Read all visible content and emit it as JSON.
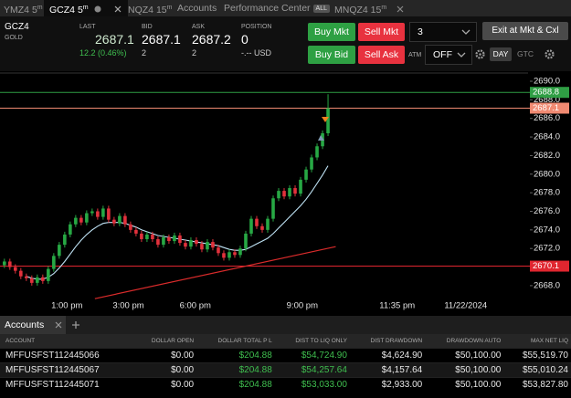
{
  "tabs": [
    {
      "symbol": "YMZ4",
      "interval": "5",
      "unit": "m"
    },
    {
      "symbol": "GCZ4",
      "interval": "5",
      "unit": "m"
    },
    {
      "symbol": "NQZ4",
      "interval": "15",
      "unit": "m"
    },
    {
      "label": "Accounts"
    },
    {
      "label": "Performance Center",
      "badge": "ALL"
    },
    {
      "symbol": "MNQZ4",
      "interval": "15",
      "unit": "m"
    }
  ],
  "quote": {
    "symbol": "GCZ4",
    "name": "GOLD",
    "last_label": "LAST",
    "last": "2687.1",
    "change": "12.2 (0.46%)",
    "bid_label": "BID",
    "bid": "2687.1",
    "bid_size": "2",
    "ask_label": "ASK",
    "ask": "2687.2",
    "ask_size": "2",
    "position_label": "POSITION",
    "position": "0",
    "position_value": "-.-- USD"
  },
  "order_entry": {
    "buy_mkt": "Buy Mkt",
    "sell_mkt": "Sell Mkt",
    "quantity": "3",
    "exit": "Exit at Mkt & Cxl",
    "buy_bid": "Buy Bid",
    "sell_ask": "Sell Ask",
    "atm_label": "ATM",
    "atm": "OFF",
    "day": "DAY",
    "gtc": "GTC"
  },
  "chart_data": {
    "type": "candlestick",
    "up_color": "#27a844",
    "down_color": "#e2313c",
    "open": [
      2670.2,
      2670.6,
      2670.0,
      2669.6,
      2669.0,
      2668.8,
      2668.3,
      2668.9,
      2668.5,
      2669.8,
      2671.2,
      2672.4,
      2673.5,
      2674.6,
      2675.3,
      2674.8,
      2675.8,
      2676.0,
      2675.4,
      2676.3,
      2675.1,
      2674.7,
      2675.5,
      2674.6,
      2674.0,
      2673.6,
      2673.0,
      2673.5,
      2673.0,
      2672.4,
      2673.2,
      2672.8,
      2673.4,
      2672.6,
      2672.2,
      2672.9,
      2672.5,
      2671.9,
      2672.7,
      2672.1,
      2671.5,
      2671.0,
      2671.6,
      2671.3,
      2672.0,
      2673.6,
      2675.2,
      2674.4,
      2674.0,
      2675.2,
      2677.4,
      2678.2,
      2677.6,
      2678.5,
      2677.9,
      2679.4,
      2680.5,
      2681.8,
      2683.0,
      2684.4
    ],
    "high": [
      2670.9,
      2670.9,
      2670.3,
      2669.9,
      2669.3,
      2669.1,
      2669.2,
      2669.2,
      2670.1,
      2671.5,
      2672.7,
      2673.8,
      2674.9,
      2675.6,
      2675.6,
      2676.1,
      2676.3,
      2676.3,
      2676.6,
      2676.6,
      2675.4,
      2675.8,
      2675.8,
      2674.9,
      2674.3,
      2673.9,
      2673.8,
      2673.8,
      2673.3,
      2673.5,
      2673.5,
      2673.7,
      2673.7,
      2672.9,
      2673.2,
      2673.2,
      2672.8,
      2673.0,
      2673.0,
      2672.4,
      2671.8,
      2671.9,
      2671.9,
      2672.3,
      2673.9,
      2675.5,
      2675.5,
      2674.7,
      2675.5,
      2677.7,
      2678.5,
      2678.5,
      2678.8,
      2678.8,
      2679.7,
      2680.8,
      2682.1,
      2683.3,
      2684.7,
      2688.6
    ],
    "low": [
      2669.9,
      2669.7,
      2669.3,
      2668.7,
      2668.5,
      2668.0,
      2668.0,
      2668.2,
      2668.2,
      2669.5,
      2670.9,
      2672.1,
      2673.2,
      2674.3,
      2674.5,
      2674.5,
      2675.5,
      2675.1,
      2675.1,
      2674.8,
      2674.4,
      2674.4,
      2674.3,
      2673.7,
      2673.3,
      2672.7,
      2672.7,
      2672.7,
      2672.1,
      2672.1,
      2672.5,
      2672.5,
      2672.3,
      2671.9,
      2671.9,
      2672.2,
      2671.6,
      2671.6,
      2671.8,
      2671.2,
      2670.7,
      2670.7,
      2671.0,
      2671.0,
      2671.7,
      2673.3,
      2674.1,
      2673.7,
      2673.7,
      2674.9,
      2677.1,
      2677.3,
      2677.3,
      2677.6,
      2677.6,
      2679.1,
      2680.2,
      2681.5,
      2682.7,
      2684.1
    ],
    "close": [
      2670.6,
      2670.0,
      2669.6,
      2669.0,
      2668.8,
      2668.3,
      2668.9,
      2668.5,
      2669.8,
      2671.2,
      2672.4,
      2673.5,
      2674.6,
      2675.3,
      2674.8,
      2675.8,
      2676.0,
      2675.4,
      2676.3,
      2675.1,
      2674.7,
      2675.5,
      2674.6,
      2674.0,
      2673.6,
      2673.0,
      2673.5,
      2673.0,
      2672.4,
      2673.2,
      2672.8,
      2673.4,
      2672.6,
      2672.2,
      2672.9,
      2672.5,
      2671.9,
      2672.7,
      2672.1,
      2671.5,
      2671.0,
      2671.6,
      2671.3,
      2672.0,
      2673.6,
      2675.2,
      2674.4,
      2674.0,
      2675.2,
      2677.4,
      2678.2,
      2677.6,
      2678.5,
      2677.9,
      2679.4,
      2680.5,
      2681.8,
      2683.0,
      2684.4,
      2687.1
    ],
    "moving_average": {
      "color": "#bfe3f5",
      "values": [
        null,
        null,
        null,
        null,
        2669.0,
        2668.8,
        2668.7,
        2668.7,
        2668.9,
        2669.3,
        2669.9,
        2670.6,
        2671.4,
        2672.2,
        2672.9,
        2673.5,
        2674.0,
        2674.4,
        2674.7,
        2674.8,
        2674.8,
        2674.8,
        2674.7,
        2674.5,
        2674.3,
        2674.0,
        2673.8,
        2673.6,
        2673.4,
        2673.3,
        2673.2,
        2673.1,
        2673.0,
        2672.9,
        2672.8,
        2672.7,
        2672.6,
        2672.5,
        2672.4,
        2672.3,
        2672.1,
        2671.9,
        2671.8,
        2671.8,
        2671.9,
        2672.2,
        2672.5,
        2672.8,
        2673.1,
        2673.6,
        2674.2,
        2674.8,
        2675.4,
        2676.0,
        2676.6,
        2677.3,
        2678.1,
        2679.0,
        2679.9,
        2680.9
      ]
    },
    "trendline": {
      "color": "#d92b2b",
      "x": [
        16.5,
        60.4
      ],
      "values": [
        2666.6,
        2672.2
      ]
    },
    "levels": [
      {
        "value": 2688.8,
        "color": "#2f9e44"
      },
      {
        "value": 2687.1,
        "color": "#f08a72"
      },
      {
        "value": 2670.1,
        "color": "#e0262f"
      }
    ],
    "xlim": [
      -0.8,
      95.8
    ],
    "xticks": [
      {
        "value": 11.4,
        "label": "1:00 pm"
      },
      {
        "value": 22.6,
        "label": "3:00 pm"
      },
      {
        "value": 34.8,
        "label": "6:00 pm"
      },
      {
        "value": 54.3,
        "label": "9:00 pm"
      },
      {
        "value": 71.6,
        "label": "11:35 pm"
      },
      {
        "value": 84.1,
        "label": "11/22/2024"
      }
    ],
    "ylim": [
      2664.75,
      2691.08
    ],
    "yticks": [
      {
        "value": 2668,
        "label": "2668.0"
      },
      {
        "value": 2670,
        "label": "2670.0"
      },
      {
        "value": 2672,
        "label": "2672.0"
      },
      {
        "value": 2674,
        "label": "2674.0"
      },
      {
        "value": 2676,
        "label": "2676.0"
      },
      {
        "value": 2678,
        "label": "2678.0"
      },
      {
        "value": 2680,
        "label": "2680.0"
      },
      {
        "value": 2682,
        "label": "2682.0"
      },
      {
        "value": 2684,
        "label": "2684.0"
      },
      {
        "value": 2686,
        "label": "2686.0"
      },
      {
        "value": 2688,
        "label": "2688.0"
      },
      {
        "value": 2690,
        "label": "2690.0"
      }
    ]
  },
  "accounts": {
    "tab": "Accounts",
    "columns": [
      "ACCOUNT",
      "DOLLAR OPEN",
      "DOLLAR TOTAL P L",
      "DIST TO LIQ ONLY",
      "DIST DRAWDOWN",
      "DRAWDOWN AUTO",
      "MAX NET LIQ"
    ],
    "rows": [
      [
        "MFFUSFST112445066",
        "$0.00",
        "$204.88",
        "$54,724.90",
        "$4,624.90",
        "$50,100.00",
        "$55,519.70"
      ],
      [
        "MFFUSFST112445067",
        "$0.00",
        "$204.88",
        "$54,257.64",
        "$4,157.64",
        "$50,100.00",
        "$55,010.24"
      ],
      [
        "MFFUSFST112445071",
        "$0.00",
        "$204.88",
        "$53,033.00",
        "$2,933.00",
        "$50,100.00",
        "$53,827.80"
      ]
    ]
  }
}
